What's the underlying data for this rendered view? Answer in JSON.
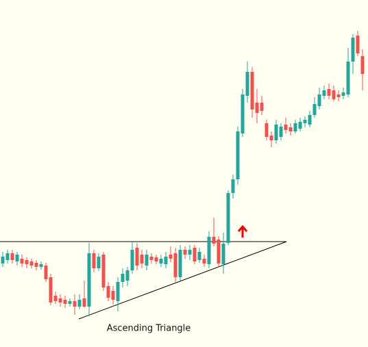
{
  "chart_data": {
    "type": "candlestick",
    "annotation": "Ascending Triangle",
    "up_color": "#26a69a",
    "down_color": "#ef5350",
    "ylim": [
      0,
      507
    ],
    "open": [
      122,
      127,
      137,
      125,
      129,
      127,
      125,
      123,
      117,
      119,
      102,
      75,
      71,
      69,
      63,
      67,
      59,
      71,
      59,
      137,
      115,
      135,
      89,
      82,
      67,
      95,
      97,
      112,
      145,
      135,
      119,
      132,
      131,
      122,
      121,
      135,
      137,
      102,
      142,
      135,
      145,
      127,
      129,
      121,
      161,
      157,
      121,
      152,
      225,
      245,
      312,
      367,
      402,
      357,
      357,
      327,
      309,
      302,
      307,
      325,
      321,
      315,
      319,
      327,
      325,
      339,
      352,
      367,
      377,
      375,
      369,
      367,
      369,
      417,
      455,
      425
    ],
    "high": [
      139,
      142,
      142,
      139,
      135,
      131,
      129,
      127,
      125,
      123,
      107,
      81,
      77,
      75,
      71,
      77,
      77,
      97,
      152,
      142,
      137,
      139,
      95,
      89,
      102,
      115,
      117,
      155,
      152,
      142,
      142,
      137,
      135,
      135,
      139,
      147,
      145,
      149,
      147,
      149,
      149,
      145,
      135,
      169,
      189,
      162,
      167,
      229,
      252,
      322,
      377,
      417,
      409,
      377,
      367,
      332,
      315,
      332,
      327,
      335,
      327,
      332,
      335,
      337,
      345,
      365,
      379,
      382,
      385,
      382,
      375,
      379,
      437,
      457,
      462,
      435
    ],
    "low": [
      117,
      122,
      122,
      119,
      117,
      115,
      115,
      112,
      113,
      95,
      61,
      63,
      59,
      57,
      59,
      47,
      55,
      57,
      45,
      109,
      111,
      82,
      67,
      62,
      52,
      87,
      89,
      107,
      112,
      115,
      112,
      122,
      121,
      117,
      115,
      124,
      95,
      97,
      129,
      127,
      121,
      123,
      117,
      115,
      147,
      117,
      107,
      149,
      217,
      237,
      307,
      357,
      335,
      327,
      339,
      302,
      292,
      297,
      302,
      312,
      309,
      312,
      315,
      321,
      321,
      335,
      347,
      362,
      362,
      359,
      359,
      362,
      365,
      399,
      425,
      375
    ],
    "close": [
      132,
      137,
      127,
      135,
      122,
      121,
      119,
      117,
      121,
      99,
      65,
      67,
      65,
      63,
      67,
      59,
      69,
      59,
      137,
      115,
      132,
      87,
      72,
      69,
      95,
      107,
      112,
      142,
      119,
      122,
      135,
      127,
      125,
      129,
      132,
      129,
      102,
      142,
      135,
      142,
      125,
      139,
      122,
      161,
      151,
      122,
      151,
      225,
      245,
      315,
      369,
      402,
      347,
      342,
      345,
      307,
      302,
      325,
      322,
      317,
      315,
      327,
      329,
      332,
      339,
      355,
      369,
      375,
      367,
      362,
      365,
      372,
      417,
      452,
      429,
      399
    ]
  }
}
